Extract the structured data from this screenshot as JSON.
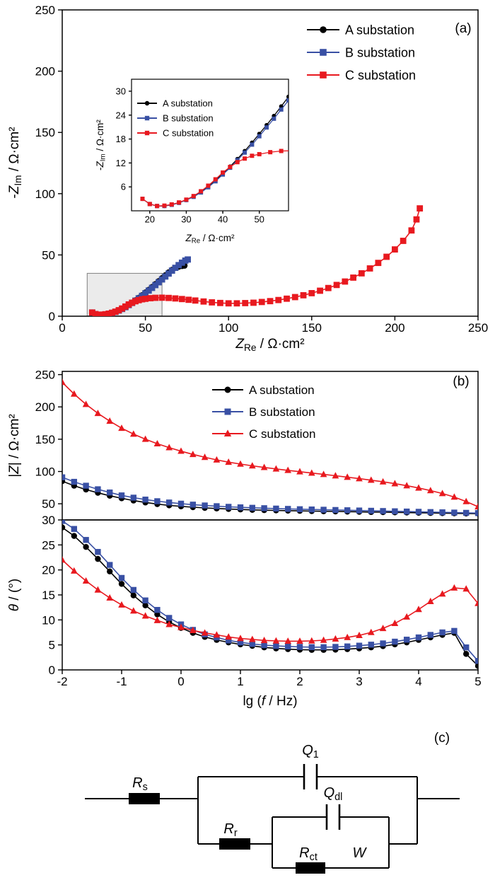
{
  "figure": {
    "panel_a_label": "(a)",
    "panel_b_label": "(b)",
    "panel_c_label": "(c)"
  },
  "chart_data": [
    {
      "id": "nyquist",
      "type": "scatter",
      "xlabel_parts": [
        [
          "Z",
          "i"
        ],
        [
          "Re",
          "sub"
        ],
        [
          " / Ω·cm²",
          ""
        ]
      ],
      "ylabel_parts": [
        [
          "-",
          ""
        ],
        [
          "Z",
          "i"
        ],
        [
          "Im",
          "sub"
        ],
        [
          " / Ω·cm²",
          ""
        ]
      ],
      "xlim": [
        0,
        250
      ],
      "ylim": [
        0,
        250
      ],
      "xticks": [
        0,
        50,
        100,
        150,
        200,
        250
      ],
      "yticks": [
        0,
        50,
        100,
        150,
        200,
        250
      ],
      "legend_position": "top-right",
      "zoom_box": {
        "x0": 15,
        "x1": 60,
        "y0": 0,
        "y1": 35
      },
      "series": [
        {
          "name": "A substation",
          "color": "#000000",
          "marker": "circle",
          "x": [
            18,
            20,
            22,
            24,
            26,
            28,
            30,
            32,
            34,
            36,
            38,
            40,
            42,
            44,
            46,
            48,
            50,
            52,
            54,
            56,
            58,
            60,
            62,
            64,
            66,
            68,
            70,
            72,
            73.5
          ],
          "y": [
            3,
            1.7,
            1.2,
            1.2,
            1.5,
            2,
            2.7,
            3.6,
            4.7,
            6,
            7.6,
            9.3,
            11.1,
            13,
            15,
            17.1,
            19.3,
            21.5,
            23.8,
            26.2,
            28.6,
            31,
            33.4,
            35.7,
            37.8,
            39.4,
            40.4,
            41,
            41.3
          ]
        },
        {
          "name": "B substation",
          "color": "#3950a4",
          "marker": "square",
          "x": [
            18,
            20,
            22,
            24,
            26,
            28,
            30,
            32,
            34,
            36,
            38,
            40,
            42,
            44,
            46,
            48,
            50,
            52,
            54,
            56,
            58,
            60,
            62,
            64,
            66,
            68,
            70,
            72,
            74,
            75.5
          ],
          "y": [
            3,
            1.7,
            1.2,
            1.2,
            1.5,
            2,
            2.7,
            3.5,
            4.6,
            5.9,
            7.4,
            9.1,
            10.8,
            12.7,
            14.6,
            16.6,
            18.7,
            20.9,
            23.1,
            25.4,
            27.7,
            30,
            32.4,
            34.8,
            37.2,
            39.5,
            41.7,
            43.7,
            45.4,
            46.3
          ]
        },
        {
          "name": "C substation",
          "color": "#e8191f",
          "marker": "square",
          "x": [
            18,
            20,
            22,
            24,
            26,
            28,
            30,
            32,
            34,
            36,
            38,
            40,
            42,
            44,
            46,
            48,
            50,
            53,
            56,
            60,
            64,
            68,
            72,
            76,
            80,
            85,
            90,
            95,
            100,
            105,
            110,
            115,
            120,
            125,
            130,
            135,
            140,
            145,
            150,
            155,
            160,
            165,
            170,
            175,
            180,
            185,
            190,
            195,
            200,
            205,
            210,
            213,
            215
          ],
          "y": [
            3,
            1.7,
            1.2,
            1.3,
            1.6,
            2.1,
            2.8,
            3.7,
            4.9,
            6.3,
            7.9,
            9.6,
            11,
            12.2,
            13.1,
            13.8,
            14.2,
            14.7,
            15,
            15.1,
            14.9,
            14.5,
            14,
            13.4,
            12.8,
            12,
            11.3,
            10.8,
            10.5,
            10.5,
            10.7,
            11,
            11.6,
            12.3,
            13.2,
            14.3,
            15.6,
            17.1,
            18.8,
            20.8,
            23,
            25.5,
            28.3,
            31.5,
            35,
            39,
            43.5,
            48.5,
            54.5,
            61.5,
            70,
            79,
            88
          ]
        }
      ]
    },
    {
      "id": "nyquist-inset",
      "type": "scatter",
      "series_from": "nyquist",
      "xlabel_parts": [
        [
          "Z",
          "i"
        ],
        [
          "Re",
          "sub"
        ],
        [
          " / Ω·cm²",
          ""
        ]
      ],
      "ylabel_parts": [
        [
          "-",
          ""
        ],
        [
          "Z",
          "i"
        ],
        [
          "Im",
          "sub"
        ],
        [
          " / Ω·cm²",
          ""
        ]
      ],
      "xlim": [
        15,
        58
      ],
      "ylim": [
        0,
        33
      ],
      "xticks": [
        20,
        30,
        40,
        50
      ],
      "yticks": [
        6,
        12,
        18,
        24,
        30
      ]
    },
    {
      "id": "bode-magnitude",
      "type": "line",
      "ylabel_parts": [
        [
          "|",
          ""
        ],
        [
          "Z",
          "i"
        ],
        [
          "| / Ω·cm²",
          ""
        ]
      ],
      "xlim": [
        -2,
        5
      ],
      "ylim": [
        25,
        255
      ],
      "yticks": [
        50,
        100,
        150,
        200,
        250
      ],
      "series": [
        {
          "name": "A substation",
          "color": "#000000",
          "marker": "circle",
          "x": [
            -2,
            -1.8,
            -1.6,
            -1.4,
            -1.2,
            -1,
            -0.8,
            -0.6,
            -0.4,
            -0.2,
            0,
            0.2,
            0.4,
            0.6,
            0.8,
            1,
            1.2,
            1.4,
            1.6,
            1.8,
            2,
            2.2,
            2.4,
            2.6,
            2.8,
            3,
            3.2,
            3.4,
            3.6,
            3.8,
            4,
            4.2,
            4.4,
            4.6,
            4.8,
            5
          ],
          "y": [
            85,
            78,
            72,
            67,
            62.5,
            58.5,
            55,
            52,
            49.5,
            47.5,
            46,
            44.7,
            43.6,
            42.7,
            41.9,
            41.2,
            40.6,
            40.1,
            39.7,
            39.3,
            39,
            38.7,
            38.4,
            38.1,
            37.8,
            37.5,
            37.2,
            37,
            36.7,
            36.4,
            36.1,
            35.8,
            35.5,
            35.2,
            35,
            34.8
          ]
        },
        {
          "name": "B substation",
          "color": "#3950a4",
          "marker": "square",
          "x": [
            -2,
            -1.8,
            -1.6,
            -1.4,
            -1.2,
            -1,
            -0.8,
            -0.6,
            -0.4,
            -0.2,
            0,
            0.2,
            0.4,
            0.6,
            0.8,
            1,
            1.2,
            1.4,
            1.6,
            1.8,
            2,
            2.2,
            2.4,
            2.6,
            2.8,
            3,
            3.2,
            3.4,
            3.6,
            3.8,
            4,
            4.2,
            4.4,
            4.6,
            4.8,
            5
          ],
          "y": [
            91,
            84,
            78,
            72.5,
            67.5,
            63,
            59.5,
            56.5,
            54,
            52,
            50.2,
            48.7,
            47.4,
            46.3,
            45.3,
            44.5,
            43.8,
            43.2,
            42.6,
            42.1,
            41.6,
            41.2,
            40.8,
            40.4,
            40,
            39.6,
            39.2,
            38.8,
            38.4,
            38,
            37.6,
            37.2,
            36.8,
            36.4,
            36,
            35.6
          ]
        },
        {
          "name": "C substation",
          "color": "#e8191f",
          "marker": "triangle",
          "x": [
            -2,
            -1.8,
            -1.6,
            -1.4,
            -1.2,
            -1,
            -0.8,
            -0.6,
            -0.4,
            -0.2,
            0,
            0.2,
            0.4,
            0.6,
            0.8,
            1,
            1.2,
            1.4,
            1.6,
            1.8,
            2,
            2.2,
            2.4,
            2.6,
            2.8,
            3,
            3.2,
            3.4,
            3.6,
            3.8,
            4,
            4.2,
            4.4,
            4.6,
            4.8,
            5
          ],
          "y": [
            238,
            220,
            204,
            190,
            178,
            167,
            158,
            150,
            143,
            137,
            131.5,
            126.5,
            122,
            118,
            114.5,
            111.5,
            108.8,
            106.3,
            104,
            101.8,
            99.7,
            97.6,
            95.5,
            93.4,
            91.2,
            89,
            86.6,
            84,
            81.2,
            78,
            74.5,
            70.5,
            66,
            60.5,
            53.5,
            45.5
          ]
        }
      ]
    },
    {
      "id": "bode-phase",
      "type": "line",
      "xlabel_parts": [
        [
          "lg (",
          ""
        ],
        [
          "f",
          "i"
        ],
        [
          " / Hz)",
          ""
        ]
      ],
      "ylabel_parts": [
        [
          "θ",
          "i"
        ],
        [
          " / (°)",
          ""
        ]
      ],
      "xlim": [
        -2,
        5
      ],
      "ylim": [
        0,
        30
      ],
      "xticks": [
        -2,
        -1,
        0,
        1,
        2,
        3,
        4,
        5
      ],
      "yticks": [
        0,
        5,
        10,
        15,
        20,
        25,
        30
      ],
      "series": [
        {
          "name": "A substation",
          "color": "#000000",
          "marker": "circle",
          "x": [
            -2,
            -1.8,
            -1.6,
            -1.4,
            -1.2,
            -1,
            -0.8,
            -0.6,
            -0.4,
            -0.2,
            0,
            0.2,
            0.4,
            0.6,
            0.8,
            1,
            1.2,
            1.4,
            1.6,
            1.8,
            2,
            2.2,
            2.4,
            2.6,
            2.8,
            3,
            3.2,
            3.4,
            3.6,
            3.8,
            4,
            4.2,
            4.4,
            4.6,
            4.8,
            5
          ],
          "y": [
            28.5,
            26.8,
            24.6,
            22.2,
            19.7,
            17.2,
            14.9,
            12.9,
            11.1,
            9.6,
            8.4,
            7.4,
            6.6,
            6,
            5.5,
            5.1,
            4.8,
            4.5,
            4.3,
            4.15,
            4.05,
            4,
            4,
            4.05,
            4.15,
            4.3,
            4.5,
            4.75,
            5.1,
            5.5,
            6,
            6.5,
            7,
            7.4,
            3.2,
            0.8
          ]
        },
        {
          "name": "B substation",
          "color": "#3950a4",
          "marker": "square",
          "x": [
            -2,
            -1.8,
            -1.6,
            -1.4,
            -1.2,
            -1,
            -0.8,
            -0.6,
            -0.4,
            -0.2,
            0,
            0.2,
            0.4,
            0.6,
            0.8,
            1,
            1.2,
            1.4,
            1.6,
            1.8,
            2,
            2.2,
            2.4,
            2.6,
            2.8,
            3,
            3.2,
            3.4,
            3.6,
            3.8,
            4,
            4.2,
            4.4,
            4.6,
            4.8,
            5
          ],
          "y": [
            29.8,
            28.2,
            26,
            23.6,
            21,
            18.4,
            16,
            13.9,
            12,
            10.4,
            9.1,
            8,
            7.1,
            6.5,
            5.9,
            5.5,
            5.2,
            4.95,
            4.8,
            4.7,
            4.6,
            4.55,
            4.55,
            4.6,
            4.7,
            4.85,
            5.05,
            5.3,
            5.65,
            6.05,
            6.5,
            7,
            7.5,
            7.8,
            4.5,
            1.8
          ]
        },
        {
          "name": "C substation",
          "color": "#e8191f",
          "marker": "triangle",
          "x": [
            -2,
            -1.8,
            -1.6,
            -1.4,
            -1.2,
            -1,
            -0.8,
            -0.6,
            -0.4,
            -0.2,
            0,
            0.2,
            0.4,
            0.6,
            0.8,
            1,
            1.2,
            1.4,
            1.6,
            1.8,
            2,
            2.2,
            2.4,
            2.6,
            2.8,
            3,
            3.2,
            3.4,
            3.6,
            3.8,
            4,
            4.2,
            4.4,
            4.6,
            4.8,
            5
          ],
          "y": [
            22,
            19.8,
            17.8,
            16,
            14.4,
            13,
            11.8,
            10.8,
            9.9,
            9.1,
            8.5,
            7.9,
            7.4,
            7,
            6.6,
            6.3,
            6.1,
            5.9,
            5.8,
            5.75,
            5.75,
            5.8,
            5.95,
            6.2,
            6.5,
            6.9,
            7.5,
            8.3,
            9.3,
            10.6,
            12.1,
            13.7,
            15.2,
            16.4,
            16.2,
            13.3
          ]
        }
      ]
    }
  ],
  "circuit": {
    "panel_label": "(c)",
    "elements": {
      "Rs": {
        "type": "resistor",
        "label": [
          [
            "R",
            "i"
          ],
          [
            "s",
            "sub"
          ]
        ]
      },
      "Q1": {
        "type": "cpe",
        "label": [
          [
            "Q",
            "i"
          ],
          [
            "1",
            "sub"
          ]
        ]
      },
      "Rr": {
        "type": "resistor",
        "label": [
          [
            "R",
            "i"
          ],
          [
            "r",
            "sub"
          ]
        ]
      },
      "Qdl": {
        "type": "cpe",
        "label": [
          [
            "Q",
            "i"
          ],
          [
            "dl",
            "sub"
          ]
        ]
      },
      "Rct": {
        "type": "resistor",
        "label": [
          [
            "R",
            "i"
          ],
          [
            "ct",
            "sub"
          ]
        ]
      },
      "W": {
        "type": "warburg",
        "label": [
          [
            "W",
            "i"
          ]
        ]
      }
    }
  }
}
